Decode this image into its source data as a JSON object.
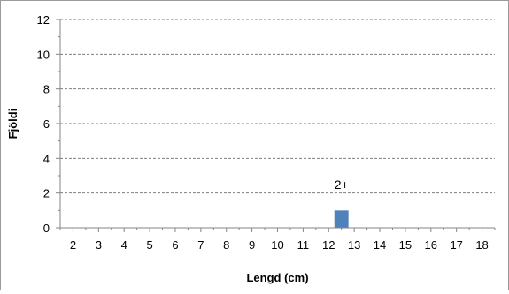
{
  "chart_data": {
    "type": "bar",
    "title": "",
    "xlabel": "Lengd (cm)",
    "ylabel": "Fjöldi",
    "x_ticks": [
      "2",
      "3",
      "4",
      "5",
      "6",
      "7",
      "8",
      "9",
      "10",
      "11",
      "12",
      "13",
      "14",
      "15",
      "16",
      "17",
      "18"
    ],
    "xlim": [
      1.5,
      18.5
    ],
    "ylim": [
      0,
      12
    ],
    "y_ticks": [
      0,
      2,
      4,
      6,
      8,
      10,
      12
    ],
    "grid": "horizontal-dashed",
    "series": [
      {
        "bars": [
          {
            "x": 12.5,
            "value": 1
          }
        ],
        "color": "#4f81bd"
      }
    ],
    "annotations": [
      {
        "text": "2+",
        "x": 12.5,
        "y": 2.5
      }
    ]
  }
}
